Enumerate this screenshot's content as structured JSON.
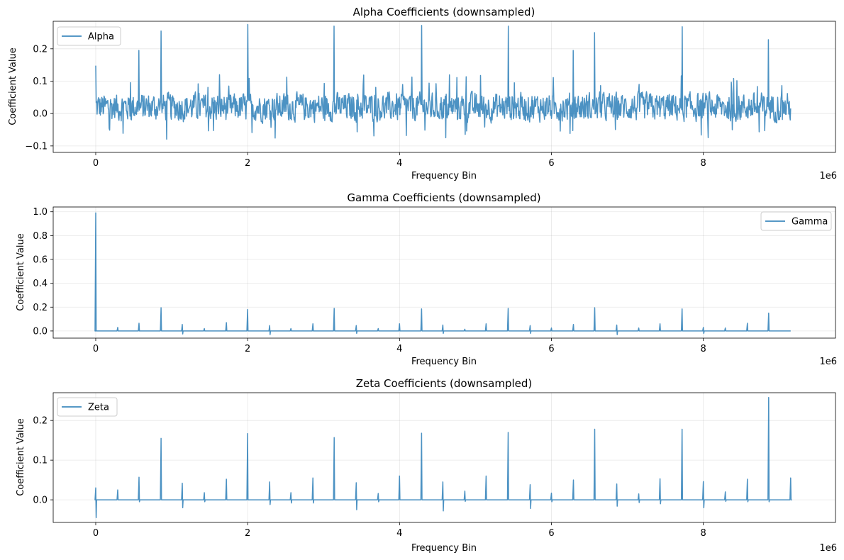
{
  "chart_data": [
    {
      "id": "alpha",
      "type": "line",
      "title": "Alpha Coefficients (downsampled)",
      "xlabel": "Frequency Bin",
      "ylabel": "Coefficient Value",
      "x_multiplier": "1e6",
      "xlim": [
        -0.56,
        9.74
      ],
      "ylim": [
        -0.12,
        0.285
      ],
      "xticks": [
        0,
        2,
        4,
        6,
        8
      ],
      "xtick_labels": [
        "0",
        "2",
        "4",
        "6",
        "8"
      ],
      "yticks": [
        -0.1,
        0.0,
        0.1,
        0.2
      ],
      "ytick_labels": [
        "−0.1",
        "0.0",
        "0.1",
        "0.2"
      ],
      "grid": true,
      "legend_position": "top-left",
      "color": "#1f77b4",
      "x_start": 0,
      "x_end": 9.15,
      "noise_center": 0.02,
      "noise_amplitude": 0.04,
      "spike_x": [
        0.0,
        0.57,
        0.86,
        2.0,
        3.14,
        4.29,
        5.43,
        6.29,
        6.57,
        7.72,
        8.86
      ],
      "spike_y": [
        0.148,
        0.195,
        0.255,
        0.275,
        0.27,
        0.272,
        0.27,
        0.195,
        0.25,
        0.268,
        0.228
      ],
      "series": [
        {
          "name": "Alpha"
        }
      ]
    },
    {
      "id": "gamma",
      "type": "line",
      "title": "Gamma Coefficients (downsampled)",
      "xlabel": "Frequency Bin",
      "ylabel": "Coefficient Value",
      "x_multiplier": "1e6",
      "xlim": [
        -0.56,
        9.74
      ],
      "ylim": [
        -0.06,
        1.04
      ],
      "xticks": [
        0,
        2,
        4,
        6,
        8
      ],
      "xtick_labels": [
        "0",
        "2",
        "4",
        "6",
        "8"
      ],
      "yticks": [
        0.0,
        0.2,
        0.4,
        0.6,
        0.8,
        1.0
      ],
      "ytick_labels": [
        "0.0",
        "0.2",
        "0.4",
        "0.6",
        "0.8",
        "1.0"
      ],
      "grid": true,
      "legend_position": "top-right",
      "color": "#1f77b4",
      "x_start": 0,
      "x_end": 9.15,
      "spike_x": [
        0.0,
        0.29,
        0.57,
        0.86,
        1.14,
        1.43,
        1.72,
        2.0,
        2.29,
        2.57,
        2.86,
        3.14,
        3.43,
        3.72,
        4.0,
        4.29,
        4.57,
        4.86,
        5.14,
        5.43,
        5.72,
        6.0,
        6.29,
        6.57,
        6.86,
        7.15,
        7.43,
        7.72,
        8.0,
        8.29,
        8.58,
        8.86
      ],
      "spike_y": [
        0.99,
        0.03,
        0.065,
        0.195,
        0.055,
        0.02,
        0.07,
        0.18,
        0.045,
        0.02,
        0.06,
        0.19,
        0.045,
        0.02,
        0.06,
        0.185,
        0.05,
        0.015,
        0.06,
        0.19,
        0.045,
        0.025,
        0.055,
        0.195,
        0.05,
        0.025,
        0.06,
        0.185,
        0.03,
        0.025,
        0.065,
        0.15
      ],
      "spike_neg": [
        0.0,
        0.0,
        0.0,
        0.0,
        -0.025,
        0.0,
        0.0,
        0.0,
        -0.03,
        0.0,
        0.0,
        0.0,
        -0.02,
        0.0,
        0.0,
        0.0,
        -0.02,
        0.0,
        0.0,
        0.0,
        -0.02,
        0.0,
        0.0,
        0.0,
        -0.03,
        0.0,
        0.0,
        0.0,
        -0.02,
        0.0,
        0.0,
        0.0
      ],
      "series": [
        {
          "name": "Gamma"
        }
      ]
    },
    {
      "id": "zeta",
      "type": "line",
      "title": "Zeta Coefficients (downsampled)",
      "xlabel": "Frequency Bin",
      "ylabel": "Coefficient Value",
      "x_multiplier": "1e6",
      "xlim": [
        -0.56,
        9.74
      ],
      "ylim": [
        -0.057,
        0.27
      ],
      "xticks": [
        0,
        2,
        4,
        6,
        8
      ],
      "xtick_labels": [
        "0",
        "2",
        "4",
        "6",
        "8"
      ],
      "yticks": [
        0.0,
        0.1,
        0.2
      ],
      "ytick_labels": [
        "0.0",
        "0.1",
        "0.2"
      ],
      "grid": true,
      "legend_position": "top-left",
      "color": "#1f77b4",
      "x_start": 0,
      "x_end": 9.15,
      "spike_x": [
        0.0,
        0.29,
        0.57,
        0.86,
        1.14,
        1.43,
        1.72,
        2.0,
        2.29,
        2.57,
        2.86,
        3.14,
        3.43,
        3.72,
        4.0,
        4.29,
        4.57,
        4.86,
        5.14,
        5.43,
        5.72,
        6.0,
        6.29,
        6.57,
        6.86,
        7.15,
        7.43,
        7.72,
        8.0,
        8.29,
        8.58,
        8.86,
        9.15
      ],
      "spike_y": [
        0.03,
        0.025,
        0.057,
        0.155,
        0.042,
        0.018,
        0.052,
        0.167,
        0.045,
        0.018,
        0.055,
        0.157,
        0.043,
        0.016,
        0.06,
        0.168,
        0.045,
        0.022,
        0.06,
        0.17,
        0.038,
        0.017,
        0.05,
        0.178,
        0.04,
        0.015,
        0.053,
        0.178,
        0.046,
        0.02,
        0.052,
        0.258,
        0.055
      ],
      "spike_neg": [
        -0.045,
        0.0,
        -0.005,
        0.0,
        -0.02,
        -0.005,
        0.0,
        0.0,
        -0.012,
        -0.008,
        -0.008,
        0.0,
        -0.025,
        -0.005,
        0.0,
        0.0,
        -0.028,
        -0.004,
        0.0,
        0.0,
        -0.022,
        -0.005,
        0.0,
        0.0,
        -0.016,
        -0.007,
        -0.01,
        0.0,
        -0.02,
        -0.004,
        -0.005,
        -0.005,
        0.0
      ],
      "series": [
        {
          "name": "Zeta"
        }
      ]
    }
  ]
}
